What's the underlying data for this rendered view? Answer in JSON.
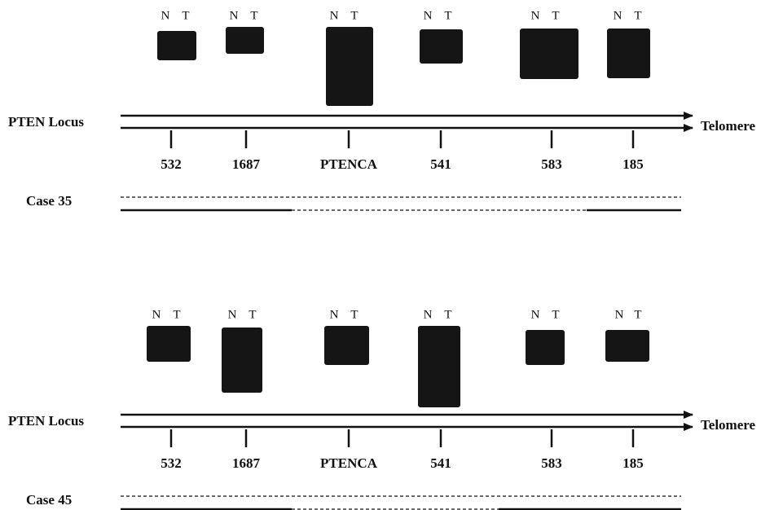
{
  "panels": [
    {
      "lane_labels": [
        "N",
        "T"
      ],
      "locus": "PTEN Locus",
      "end": "Telomere",
      "markers": [
        "532",
        "1687",
        "PTENCA",
        "541",
        "583",
        "185"
      ],
      "case": "Case 35"
    },
    {
      "lane_labels": [
        "N",
        "T"
      ],
      "locus": "PTEN Locus",
      "end": "Telomere",
      "markers": [
        "532",
        "1687",
        "PTENCA",
        "541",
        "583",
        "185"
      ],
      "case": "Case 45"
    }
  ]
}
